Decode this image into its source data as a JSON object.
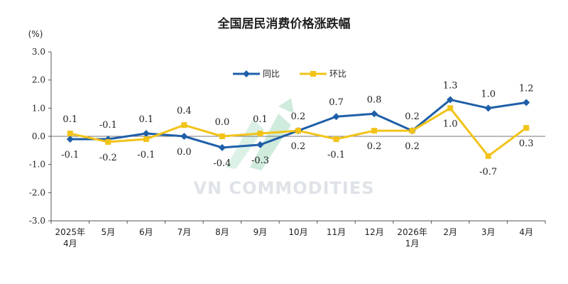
{
  "chart_data": {
    "type": "line",
    "title": "全国居民消费价格涨跌幅",
    "unit": "(%)",
    "ylim": [
      -3.0,
      3.0
    ],
    "yticks": [
      "3.0",
      "2.0",
      "1.0",
      "0.0",
      "-1.0",
      "-2.0",
      "-3.0"
    ],
    "categories": [
      [
        "2025年",
        "4月"
      ],
      [
        "5月"
      ],
      [
        "6月"
      ],
      [
        "7月"
      ],
      [
        "8月"
      ],
      [
        "9月"
      ],
      [
        "10月"
      ],
      [
        "11月"
      ],
      [
        "12月"
      ],
      [
        "2026年",
        "1月"
      ],
      [
        "2月"
      ],
      [
        "3月"
      ],
      [
        "4月"
      ]
    ],
    "series": [
      {
        "name": "同比",
        "color": "#1f5fa8",
        "marker": "diamond",
        "values": [
          -0.1,
          -0.1,
          0.1,
          0.0,
          -0.4,
          -0.3,
          0.2,
          0.7,
          0.8,
          0.2,
          1.3,
          1.0,
          1.2
        ],
        "labels": [
          "-0.1",
          "-0.1",
          "0.1",
          "0.0",
          "-0.4",
          "-0.3",
          "0.2",
          "0.7",
          "0.8",
          "0.2",
          "1.3",
          "1.0",
          "1.2"
        ]
      },
      {
        "name": "环比",
        "color": "#f2c318",
        "marker": "square",
        "values": [
          0.1,
          -0.2,
          -0.1,
          0.4,
          0.0,
          0.1,
          0.2,
          -0.1,
          0.2,
          0.2,
          1.0,
          -0.7,
          0.3
        ],
        "labels": [
          "0.1",
          "-0.2",
          "-0.1",
          "0.4",
          "0.0",
          "0.1",
          "0.2",
          "-0.1",
          "0.2",
          "0.2",
          "1.0",
          "-0.7",
          "0.3"
        ]
      }
    ],
    "grid": false,
    "legend": "top-center"
  },
  "watermark": "VN COMMODITIES"
}
